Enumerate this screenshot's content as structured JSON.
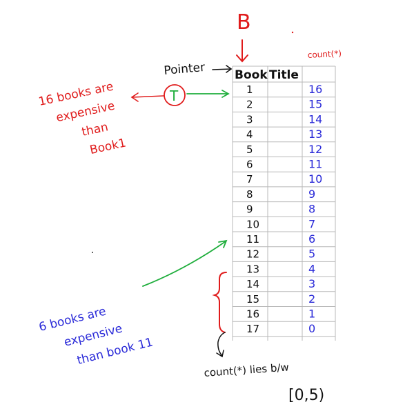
{
  "top_label": "B",
  "pointer_label": "Pointer",
  "pointer_letter": "T",
  "header": {
    "book": "Book",
    "title": "Title",
    "count": "count(*)"
  },
  "rows": [
    {
      "book": "1",
      "count": "16"
    },
    {
      "book": "2",
      "count": "15"
    },
    {
      "book": "3",
      "count": "14"
    },
    {
      "book": "4",
      "count": "13"
    },
    {
      "book": "5",
      "count": "12"
    },
    {
      "book": "6",
      "count": "11"
    },
    {
      "book": "7",
      "count": "10"
    },
    {
      "book": "8",
      "count": "9"
    },
    {
      "book": "9",
      "count": "8"
    },
    {
      "book": "10",
      "count": "7"
    },
    {
      "book": "11",
      "count": "6"
    },
    {
      "book": "12",
      "count": "5"
    },
    {
      "book": "13",
      "count": "4"
    },
    {
      "book": "14",
      "count": "3"
    },
    {
      "book": "15",
      "count": "2"
    },
    {
      "book": "16",
      "count": "1"
    },
    {
      "book": "17",
      "count": "0"
    }
  ],
  "note_red": [
    "16 books are",
    "expensive",
    "than",
    "Book1"
  ],
  "note_blue": [
    "6 books are",
    "expensive",
    "than book 11"
  ],
  "bottom_note": {
    "line1": "count(*)  lies  b/w",
    "line2": "[0,5)"
  },
  "colors": {
    "red": "#e01b1b",
    "blue": "#2a2ad8",
    "green": "#1fae3c",
    "grid": "#b8b8b8"
  }
}
